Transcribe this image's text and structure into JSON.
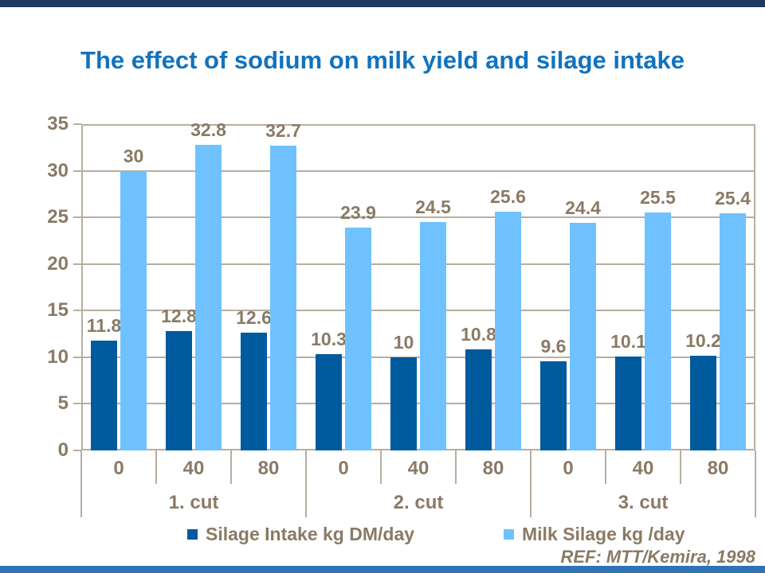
{
  "title": "The effect of sodium on milk yield and silage intake",
  "ref_note": "REF: MTT/Kemira, 1998",
  "legend": {
    "items": [
      {
        "label": "Silage Intake kg DM/day",
        "color": "#005a9e"
      },
      {
        "label": "Milk Silage kg /day",
        "color": "#6fc2ff"
      }
    ]
  },
  "colors": {
    "title": "#1173bf",
    "axis_text": "#8a7a65",
    "grid": "#b7aea1",
    "bar_dark": "#005a9e",
    "bar_light": "#6fc2ff",
    "top_strip": "#1e3a60",
    "bottom_strip": "#2e74b5"
  },
  "chart_data": {
    "type": "bar",
    "title": "The effect of sodium on milk yield and silage intake",
    "categories": [
      "0",
      "40",
      "80",
      "0",
      "40",
      "80",
      "0",
      "40",
      "80"
    ],
    "group_labels": [
      "1. cut",
      "2. cut",
      "3. cut"
    ],
    "series": [
      {
        "name": "Silage Intake kg DM/day",
        "color": "#005a9e",
        "values": [
          11.8,
          12.8,
          12.6,
          10.3,
          10,
          10.8,
          9.6,
          10.1,
          10.2
        ]
      },
      {
        "name": "Milk Silage kg /day",
        "color": "#6fc2ff",
        "values": [
          30,
          32.8,
          32.7,
          23.9,
          24.5,
          25.6,
          24.4,
          25.5,
          25.4
        ]
      }
    ],
    "xlabel": "",
    "ylabel": "",
    "ylim": [
      0,
      35
    ],
    "yticks": [
      0,
      5,
      10,
      15,
      20,
      25,
      30,
      35
    ],
    "grid": true,
    "legend_position": "bottom",
    "annotation": "REF: MTT/Kemira, 1998"
  }
}
